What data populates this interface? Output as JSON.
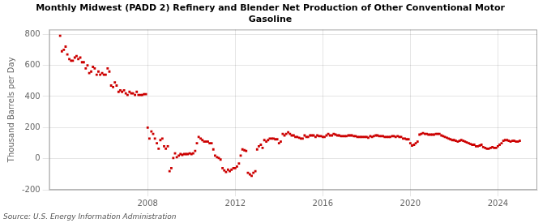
{
  "chart_data": {
    "type": "scatter",
    "title": [
      "Monthly Midwest (PADD 2) Refinery and Blender Net Production of Other Conventional Motor",
      "Gasoline"
    ],
    "y_label": "Thousand Barrels per Day",
    "source": "Source: U.S. Energy Information Administration",
    "color": "#cc0000",
    "marker": "square",
    "grid": true,
    "xlim": [
      2003.5,
      2025.8
    ],
    "ylim": [
      -200,
      830
    ],
    "xticks": [
      2008,
      2012,
      2016,
      2020,
      2024
    ],
    "yticks": [
      -200,
      0,
      200,
      400,
      600,
      800
    ],
    "x": [
      2004.0,
      2004.08,
      2004.17,
      2004.25,
      2004.33,
      2004.42,
      2004.5,
      2004.58,
      2004.67,
      2004.75,
      2004.83,
      2004.92,
      2005.0,
      2005.08,
      2005.17,
      2005.25,
      2005.33,
      2005.42,
      2005.5,
      2005.58,
      2005.67,
      2005.75,
      2005.83,
      2005.92,
      2006.0,
      2006.08,
      2006.17,
      2006.25,
      2006.33,
      2006.42,
      2006.5,
      2006.58,
      2006.67,
      2006.75,
      2006.83,
      2006.92,
      2007.0,
      2007.08,
      2007.17,
      2007.25,
      2007.33,
      2007.42,
      2007.5,
      2007.58,
      2007.67,
      2007.75,
      2007.83,
      2007.92,
      2008.0,
      2008.08,
      2008.17,
      2008.25,
      2008.33,
      2008.42,
      2008.5,
      2008.58,
      2008.67,
      2008.75,
      2008.83,
      2008.92,
      2009.0,
      2009.08,
      2009.17,
      2009.25,
      2009.33,
      2009.42,
      2009.5,
      2009.58,
      2009.67,
      2009.75,
      2009.83,
      2009.92,
      2010.0,
      2010.08,
      2010.17,
      2010.25,
      2010.33,
      2010.42,
      2010.5,
      2010.58,
      2010.67,
      2010.75,
      2010.83,
      2010.92,
      2011.0,
      2011.08,
      2011.17,
      2011.25,
      2011.33,
      2011.42,
      2011.5,
      2011.58,
      2011.67,
      2011.75,
      2011.83,
      2011.92,
      2012.0,
      2012.08,
      2012.17,
      2012.25,
      2012.33,
      2012.42,
      2012.5,
      2012.58,
      2012.67,
      2012.75,
      2012.83,
      2012.92,
      2013.0,
      2013.08,
      2013.17,
      2013.25,
      2013.33,
      2013.42,
      2013.5,
      2013.58,
      2013.67,
      2013.75,
      2013.83,
      2013.92,
      2014.0,
      2014.08,
      2014.17,
      2014.25,
      2014.33,
      2014.42,
      2014.5,
      2014.58,
      2014.67,
      2014.75,
      2014.83,
      2014.92,
      2015.0,
      2015.08,
      2015.17,
      2015.25,
      2015.33,
      2015.42,
      2015.5,
      2015.58,
      2015.67,
      2015.75,
      2015.83,
      2015.92,
      2016.0,
      2016.08,
      2016.17,
      2016.25,
      2016.33,
      2016.42,
      2016.5,
      2016.58,
      2016.67,
      2016.75,
      2016.83,
      2016.92,
      2017.0,
      2017.08,
      2017.17,
      2017.25,
      2017.33,
      2017.42,
      2017.5,
      2017.58,
      2017.67,
      2017.75,
      2017.83,
      2017.92,
      2018.0,
      2018.08,
      2018.17,
      2018.25,
      2018.33,
      2018.42,
      2018.5,
      2018.58,
      2018.67,
      2018.75,
      2018.83,
      2018.92,
      2019.0,
      2019.08,
      2019.17,
      2019.25,
      2019.33,
      2019.42,
      2019.5,
      2019.58,
      2019.67,
      2019.75,
      2019.83,
      2019.92,
      2020.0,
      2020.08,
      2020.17,
      2020.25,
      2020.33,
      2020.42,
      2020.5,
      2020.58,
      2020.67,
      2020.75,
      2020.83,
      2020.92,
      2021.0,
      2021.08,
      2021.17,
      2021.25,
      2021.33,
      2021.42,
      2021.5,
      2021.58,
      2021.67,
      2021.75,
      2021.83,
      2021.92,
      2022.0,
      2022.08,
      2022.17,
      2022.25,
      2022.33,
      2022.42,
      2022.5,
      2022.58,
      2022.67,
      2022.75,
      2022.83,
      2022.92,
      2023.0,
      2023.08,
      2023.17,
      2023.25,
      2023.33,
      2023.42,
      2023.5,
      2023.58,
      2023.67,
      2023.75,
      2023.83,
      2023.92,
      2024.0,
      2024.08,
      2024.17,
      2024.25,
      2024.33,
      2024.42,
      2024.5,
      2024.58,
      2024.67,
      2024.75,
      2024.83,
      2024.92,
      2025.0
    ],
    "values": [
      790,
      690,
      700,
      720,
      670,
      640,
      630,
      630,
      650,
      660,
      640,
      650,
      620,
      620,
      580,
      600,
      550,
      560,
      590,
      580,
      540,
      560,
      540,
      550,
      540,
      540,
      580,
      560,
      470,
      460,
      490,
      470,
      430,
      440,
      430,
      440,
      420,
      410,
      430,
      420,
      420,
      410,
      430,
      410,
      410,
      410,
      415,
      415,
      200,
      130,
      175,
      160,
      130,
      100,
      65,
      120,
      130,
      80,
      65,
      80,
      -80,
      -60,
      5,
      35,
      10,
      20,
      30,
      25,
      30,
      30,
      30,
      35,
      30,
      35,
      50,
      100,
      140,
      130,
      120,
      110,
      110,
      110,
      100,
      100,
      60,
      20,
      10,
      5,
      -5,
      -60,
      -75,
      -85,
      -70,
      -80,
      -70,
      -60,
      -60,
      -50,
      -30,
      20,
      60,
      55,
      50,
      -90,
      -100,
      -110,
      -90,
      -80,
      60,
      80,
      90,
      70,
      120,
      110,
      120,
      130,
      130,
      130,
      125,
      125,
      100,
      110,
      160,
      150,
      160,
      170,
      160,
      150,
      150,
      140,
      140,
      135,
      130,
      130,
      150,
      140,
      140,
      150,
      150,
      150,
      140,
      150,
      145,
      145,
      140,
      140,
      150,
      160,
      150,
      150,
      160,
      155,
      150,
      150,
      145,
      145,
      145,
      145,
      150,
      150,
      150,
      145,
      145,
      140,
      140,
      140,
      140,
      140,
      140,
      135,
      145,
      140,
      145,
      150,
      150,
      145,
      145,
      145,
      140,
      140,
      140,
      140,
      145,
      145,
      140,
      145,
      140,
      140,
      130,
      130,
      125,
      125,
      100,
      85,
      90,
      100,
      110,
      155,
      160,
      165,
      160,
      160,
      155,
      155,
      155,
      155,
      160,
      160,
      160,
      150,
      145,
      140,
      135,
      130,
      125,
      120,
      120,
      115,
      110,
      115,
      120,
      115,
      110,
      105,
      100,
      95,
      90,
      90,
      80,
      80,
      85,
      90,
      75,
      70,
      65,
      65,
      70,
      75,
      70,
      70,
      80,
      90,
      100,
      115,
      120,
      120,
      115,
      110,
      115,
      115,
      110,
      110,
      115
    ]
  }
}
